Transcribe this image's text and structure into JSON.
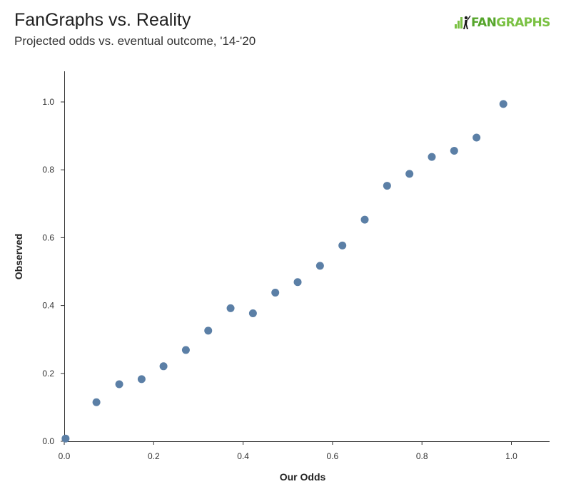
{
  "header": {
    "title": "FanGraphs vs. Reality",
    "subtitle": "Projected odds vs. eventual outcome, '14-'20"
  },
  "logo": {
    "text_fan": "FAN",
    "text_graphs": "GRAPHS",
    "icon": "fangraphs-batter-logo-icon",
    "colors": {
      "green": "#7ac143",
      "dark_green": "#55a52b"
    }
  },
  "chart_data": {
    "type": "scatter",
    "xlabel": "Our Odds",
    "ylabel": "Observed",
    "xlim": [
      0,
      1.08
    ],
    "ylim": [
      0,
      1.1
    ],
    "x_ticks": [
      "0.0",
      "0.2",
      "0.4",
      "0.6",
      "0.8",
      "1.0"
    ],
    "y_ticks": [
      "0.0",
      "0.2",
      "0.4",
      "0.6",
      "0.8",
      "1.0"
    ],
    "grid": false,
    "point_color": "#5b7fa6",
    "x": [
      0.003,
      0.072,
      0.123,
      0.173,
      0.222,
      0.272,
      0.322,
      0.372,
      0.422,
      0.472,
      0.522,
      0.572,
      0.622,
      0.672,
      0.722,
      0.772,
      0.822,
      0.872,
      0.922,
      0.982
    ],
    "y": [
      0.008,
      0.115,
      0.168,
      0.183,
      0.221,
      0.269,
      0.326,
      0.392,
      0.377,
      0.438,
      0.469,
      0.517,
      0.577,
      0.653,
      0.753,
      0.788,
      0.838,
      0.856,
      0.895,
      0.994
    ]
  }
}
